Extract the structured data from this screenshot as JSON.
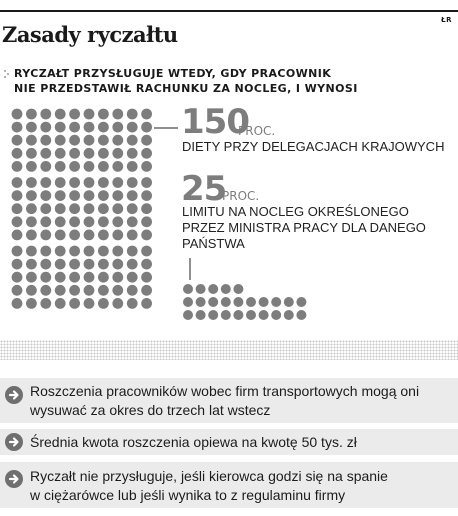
{
  "source_tag": "ŁR",
  "title": "Zasady ryczałtu",
  "deck": {
    "line1": "Ryczałt przysługuje wtedy, gdy pracownik",
    "line2": "nie przedstawił rachunku za nocleg, i wynosi"
  },
  "stats": [
    {
      "value": "150",
      "unit": "PROC.",
      "desc": [
        "DIETY PRZY DELEGACJACH KRAJOWYCH"
      ],
      "dot_count": 150
    },
    {
      "value": "25",
      "unit": "PROC.",
      "desc": [
        "LIMITU NA NOCLEG OKREŚLONEGO",
        "PRZEZ MINISTRA PRACY DLA DANEGO",
        "PAŃSTWA"
      ],
      "dot_count": 25
    }
  ],
  "colors": {
    "dot": "#7d7d7d",
    "bullet_bg": "#ebebeb",
    "arrow": "#6f6f6f"
  },
  "bullets": [
    {
      "icon": "arrow-right-circle-icon",
      "lines": [
        "Roszczenia pracowników wobec firm transportowych mogą oni",
        "wysuwać za okres do trzech lat wstecz"
      ]
    },
    {
      "icon": "arrow-right-circle-icon",
      "lines": [
        "Średnia kwota roszczenia opiewa na kwotę 50 tys. zł"
      ]
    },
    {
      "icon": "arrow-right-circle-icon",
      "lines": [
        "Ryczałt nie przysługuje, jeśli kierowca godzi się na spanie",
        "w ciężarówce lub jeśli wynika to z regulaminu firmy"
      ]
    }
  ]
}
